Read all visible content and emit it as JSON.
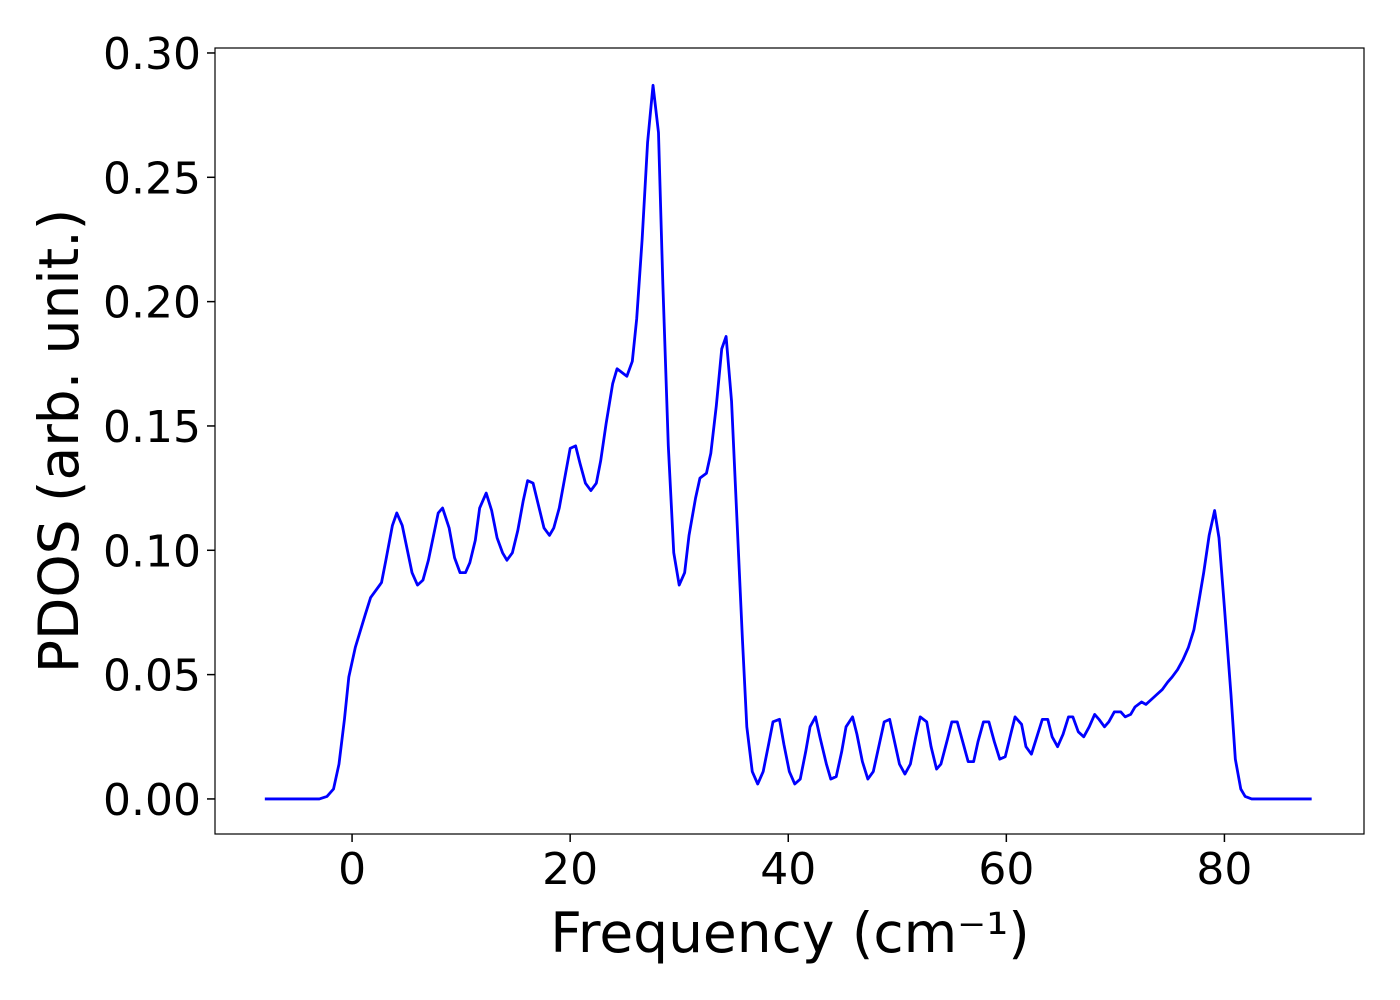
{
  "chart_data": {
    "type": "line",
    "xlabel": "Frequency (cm⁻¹)",
    "ylabel": "PDOS (arb. unit.)",
    "color": "#0000ff",
    "x": [
      -8,
      -3,
      -2.3,
      -1.7,
      -1.2,
      -0.7,
      -0.3,
      0.3,
      1.2,
      1.7,
      2.7,
      3.1,
      3.7,
      4.1,
      4.6,
      5.5,
      6.0,
      6.5,
      7.0,
      7.9,
      8.3,
      8.9,
      9.4,
      9.9,
      10.4,
      10.8,
      11.3,
      11.7,
      12.3,
      12.8,
      13.3,
      13.8,
      14.2,
      14.7,
      15.2,
      15.7,
      16.1,
      16.6,
      17.1,
      17.6,
      18.1,
      18.5,
      19.0,
      19.5,
      20.0,
      20.5,
      20.9,
      21.4,
      21.9,
      22.4,
      22.8,
      23.3,
      23.9,
      24.3,
      25.2,
      25.7,
      26.1,
      26.6,
      27.1,
      27.6,
      28.1,
      28.5,
      29.0,
      29.5,
      30.0,
      30.5,
      30.9,
      31.5,
      31.9,
      32.5,
      32.9,
      33.4,
      33.9,
      34.3,
      34.8,
      35.3,
      35.8,
      36.2,
      36.7,
      37.2,
      37.7,
      38.2,
      38.6,
      39.2,
      39.6,
      40.1,
      40.6,
      41.1,
      41.6,
      42.0,
      42.5,
      42.9,
      43.5,
      43.9,
      44.4,
      44.9,
      45.3,
      45.9,
      46.3,
      46.8,
      47.3,
      47.8,
      48.3,
      48.8,
      49.3,
      49.7,
      50.2,
      50.7,
      51.2,
      51.7,
      52.1,
      52.7,
      53.1,
      53.6,
      54.0,
      54.6,
      55.0,
      55.5,
      56.0,
      56.5,
      57.0,
      57.4,
      57.9,
      58.4,
      58.9,
      59.4,
      59.9,
      60.4,
      60.8,
      61.4,
      61.8,
      62.3,
      62.8,
      63.3,
      63.8,
      64.2,
      64.7,
      65.2,
      65.7,
      66.1,
      66.6,
      67.1,
      67.6,
      68.1,
      68.5,
      69.0,
      69.4,
      69.9,
      70.5,
      70.9,
      71.4,
      71.8,
      72.4,
      72.8,
      73.3,
      73.8,
      74.3,
      74.8,
      75.2,
      75.7,
      76.2,
      76.7,
      77.2,
      77.6,
      78.1,
      78.6,
      79.1,
      79.5,
      80.0,
      80.6,
      81.0,
      81.5,
      81.9,
      82.5,
      88
    ],
    "values": [
      0,
      0,
      0.001,
      0.004,
      0.014,
      0.032,
      0.049,
      0.061,
      0.074,
      0.081,
      0.087,
      0.096,
      0.11,
      0.115,
      0.11,
      0.091,
      0.086,
      0.088,
      0.096,
      0.115,
      0.117,
      0.109,
      0.097,
      0.091,
      0.091,
      0.095,
      0.104,
      0.117,
      0.123,
      0.116,
      0.105,
      0.099,
      0.096,
      0.099,
      0.108,
      0.12,
      0.128,
      0.127,
      0.118,
      0.109,
      0.106,
      0.109,
      0.117,
      0.129,
      0.141,
      0.142,
      0.135,
      0.127,
      0.124,
      0.127,
      0.136,
      0.151,
      0.167,
      0.173,
      0.17,
      0.176,
      0.193,
      0.225,
      0.264,
      0.287,
      0.268,
      0.207,
      0.142,
      0.099,
      0.086,
      0.091,
      0.106,
      0.121,
      0.129,
      0.131,
      0.139,
      0.158,
      0.181,
      0.186,
      0.16,
      0.112,
      0.064,
      0.029,
      0.011,
      0.006,
      0.011,
      0.022,
      0.031,
      0.032,
      0.022,
      0.011,
      0.006,
      0.008,
      0.019,
      0.029,
      0.033,
      0.025,
      0.014,
      0.008,
      0.009,
      0.019,
      0.029,
      0.033,
      0.026,
      0.015,
      0.008,
      0.011,
      0.021,
      0.031,
      0.032,
      0.024,
      0.014,
      0.01,
      0.014,
      0.025,
      0.033,
      0.031,
      0.021,
      0.012,
      0.014,
      0.024,
      0.031,
      0.031,
      0.023,
      0.015,
      0.015,
      0.023,
      0.031,
      0.031,
      0.023,
      0.016,
      0.017,
      0.026,
      0.033,
      0.03,
      0.021,
      0.018,
      0.025,
      0.032,
      0.032,
      0.025,
      0.021,
      0.026,
      0.033,
      0.033,
      0.027,
      0.025,
      0.029,
      0.034,
      0.032,
      0.029,
      0.031,
      0.035,
      0.035,
      0.033,
      0.034,
      0.037,
      0.039,
      0.038,
      0.04,
      0.042,
      0.044,
      0.047,
      0.049,
      0.052,
      0.056,
      0.061,
      0.068,
      0.078,
      0.091,
      0.106,
      0.116,
      0.105,
      0.077,
      0.042,
      0.016,
      0.004,
      0.001,
      0,
      0
    ],
    "xlim": [
      -12.57,
      92.8
    ],
    "ylim": [
      -0.0141,
      0.302
    ],
    "xticks": [
      0,
      20,
      40,
      60,
      80
    ],
    "yticks": [
      {
        "value": 0,
        "label": "0.00"
      },
      {
        "value": 0.05,
        "label": "0.05"
      },
      {
        "value": 0.1,
        "label": "0.10"
      },
      {
        "value": 0.15,
        "label": "0.15"
      },
      {
        "value": 0.2,
        "label": "0.20"
      },
      {
        "value": 0.25,
        "label": "0.25"
      },
      {
        "value": 0.3,
        "label": "0.30"
      }
    ]
  }
}
